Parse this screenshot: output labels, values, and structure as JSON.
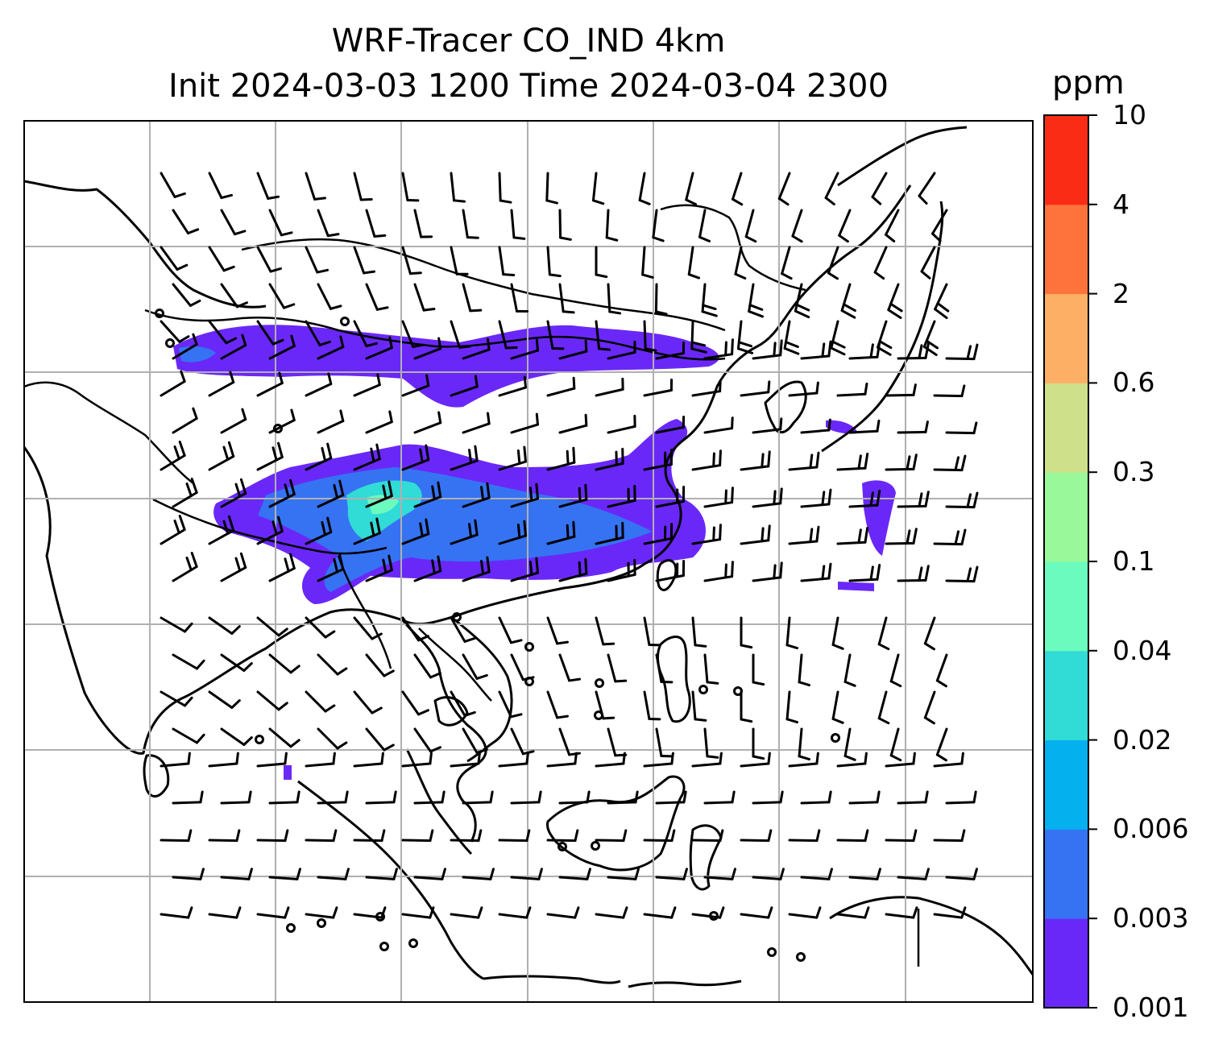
{
  "title": {
    "line1": "WRF-Tracer CO_IND 4km",
    "line2": "Init 2024-03-03 1200 Time 2024-03-04 2300"
  },
  "colorbar": {
    "unit": "ppm",
    "levels": [
      "0.001",
      "0.003",
      "0.006",
      "0.02",
      "0.04",
      "0.1",
      "0.3",
      "0.6",
      "2",
      "4",
      "10"
    ],
    "colors": [
      "#6a28f8",
      "#3573f2",
      "#04b0ee",
      "#31dbd6",
      "#6cfbbf",
      "#99f99a",
      "#cfe08a",
      "#fdb065",
      "#fd733b",
      "#fb2c15"
    ]
  },
  "map": {
    "gridlines": true,
    "layers": [
      "coastlines",
      "country-borders",
      "wind-barbs",
      "co-tracer-concentration"
    ]
  }
}
